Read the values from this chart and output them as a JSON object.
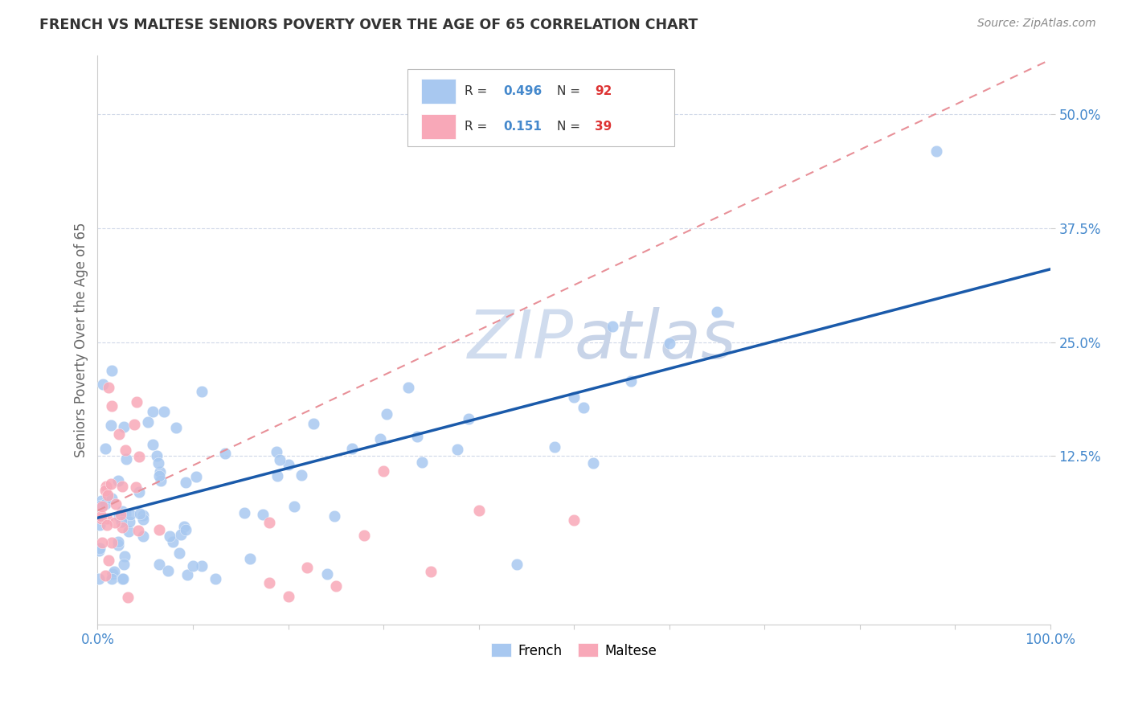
{
  "title": "FRENCH VS MALTESE SENIORS POVERTY OVER THE AGE OF 65 CORRELATION CHART",
  "source": "Source: ZipAtlas.com",
  "ylabel": "Seniors Poverty Over the Age of 65",
  "xlim": [
    0,
    1.0
  ],
  "ylim": [
    -0.06,
    0.565
  ],
  "yticks": [
    0.125,
    0.25,
    0.375,
    0.5
  ],
  "yticklabels": [
    "12.5%",
    "25.0%",
    "37.5%",
    "50.0%"
  ],
  "french_R": "0.496",
  "french_N": "92",
  "maltese_R": "0.151",
  "maltese_N": "39",
  "french_color": "#a8c8f0",
  "maltese_color": "#f8a8b8",
  "french_line_color": "#1a5aaa",
  "maltese_line_color": "#e89098",
  "grid_color": "#d0d8e8",
  "title_color": "#333333",
  "axis_label_color": "#666666",
  "tick_label_color": "#4488cc",
  "watermark_color": "#d0dcee",
  "legend_R_color": "#4488cc",
  "legend_N_color": "#dd3333",
  "french_line_x": [
    0.0,
    1.0
  ],
  "french_line_y": [
    0.057,
    0.33
  ],
  "maltese_line_x": [
    0.0,
    1.0
  ],
  "maltese_line_y": [
    0.065,
    0.56
  ]
}
